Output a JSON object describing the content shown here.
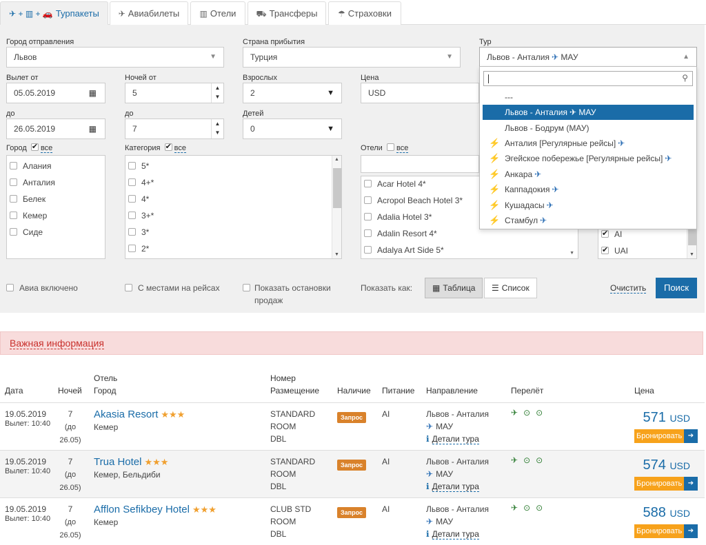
{
  "tabs": [
    {
      "label": "Турпакеты",
      "icon": "plane-hotel-car-icon"
    },
    {
      "label": "Авиабилеты",
      "icon": "plane-icon"
    },
    {
      "label": "Отели",
      "icon": "building-icon"
    },
    {
      "label": "Трансферы",
      "icon": "car-icon"
    },
    {
      "label": "Страховки",
      "icon": "umbrella-icon"
    }
  ],
  "filters": {
    "departure_city": {
      "label": "Город отправления",
      "value": "Львов"
    },
    "arrival_country": {
      "label": "Страна прибытия",
      "value": "Турция"
    },
    "tour": {
      "label": "Тур",
      "value": "Львов - Анталия",
      "suffix": "МАУ"
    },
    "date_from": {
      "label": "Вылет от",
      "value": "05.05.2019"
    },
    "date_to": {
      "label": "до",
      "value": "26.05.2019"
    },
    "nights_from": {
      "label": "Ночей от",
      "value": "5"
    },
    "nights_to": {
      "label": "до",
      "value": "7"
    },
    "adults": {
      "label": "Взрослых",
      "value": "2"
    },
    "children": {
      "label": "Детей",
      "value": "0"
    },
    "price": {
      "label": "Цена",
      "value": "USD"
    },
    "city": {
      "label": "Город",
      "all": "все",
      "items": [
        "Алания",
        "Анталия",
        "Белек",
        "Кемер",
        "Сиде"
      ]
    },
    "category": {
      "label": "Категория",
      "all": "все",
      "items": [
        "5*",
        "4+*",
        "4*",
        "3+*",
        "3*",
        "2*"
      ]
    },
    "hotels": {
      "label": "Отели",
      "all": "все",
      "items": [
        "Acar Hotel 4*",
        "Acropol Beach Hotel 3*",
        "Adalia Hotel 3*",
        "Adalin Resort 4*",
        "Adalya Art Side 5*"
      ]
    },
    "meals": {
      "items": [
        "AI",
        "UAI"
      ]
    }
  },
  "tour_dropdown": {
    "items": [
      {
        "label": "---",
        "bolt": false,
        "plane": false
      },
      {
        "label": "Львов - Анталия",
        "suffix": "МАУ",
        "bolt": false,
        "plane": true,
        "selected": true
      },
      {
        "label": "Львов - Бодрум (МАУ)",
        "bolt": false,
        "plane": false
      },
      {
        "label": "Анталия [Регулярные рейсы]",
        "bolt": true,
        "plane": true
      },
      {
        "label": "Эгейское побережье [Регулярные рейсы]",
        "bolt": true,
        "plane": true
      },
      {
        "label": "Анкара",
        "bolt": true,
        "plane": true
      },
      {
        "label": "Каппадокия",
        "bolt": true,
        "plane": true
      },
      {
        "label": "Кушадасы",
        "bolt": true,
        "plane": true
      },
      {
        "label": "Стамбул",
        "bolt": true,
        "plane": true
      }
    ]
  },
  "options": {
    "avia_included": "Авиа включено",
    "with_seats": "С местами на рейсах",
    "show_stops": "Показать остановки продаж",
    "show_as": "Показать как:",
    "table": "Таблица",
    "list": "Список",
    "clear": "Очистить",
    "search": "Поиск"
  },
  "info_bar": "Важная информация",
  "table": {
    "headers": {
      "date": "Дата",
      "nights": "Ночей",
      "hotel_top": "Отель",
      "hotel_bottom": "Город",
      "room_top": "Номер",
      "room_bottom": "Размещение",
      "availability": "Наличие",
      "meal": "Питание",
      "direction": "Направление",
      "flight": "Перелёт",
      "price": "Цена"
    },
    "rows": [
      {
        "date": "19.05.2019",
        "departure": "Вылет: 10:40",
        "nights": "7",
        "until": "(до",
        "until_date": "26.05)",
        "hotel": "Akasia Resort",
        "stars": "★★★",
        "city": "Кемер",
        "room": [
          "STANDARD",
          "ROOM",
          "DBL"
        ],
        "availability": "Запрос",
        "meal": "AI",
        "direction": "Львов - Анталия",
        "airline": "МАУ",
        "details": "Детали тура",
        "price": "571",
        "currency": "USD",
        "book": "Бронировать"
      },
      {
        "date": "19.05.2019",
        "departure": "Вылет: 10:40",
        "nights": "7",
        "until": "(до",
        "until_date": "26.05)",
        "hotel": "Trua Hotel",
        "stars": "★★★",
        "city": "Кемер, Бельдиби",
        "room": [
          "STANDARD",
          "ROOM",
          "DBL"
        ],
        "availability": "Запрос",
        "meal": "AI",
        "direction": "Львов - Анталия",
        "airline": "МАУ",
        "details": "Детали тура",
        "price": "574",
        "currency": "USD",
        "book": "Бронировать"
      },
      {
        "date": "19.05.2019",
        "departure": "Вылет: 10:40",
        "nights": "7",
        "until": "(до",
        "until_date": "26.05)",
        "hotel": "Afflon Sefikbey Hotel",
        "stars": "★★★",
        "city": "Кемер",
        "room": [
          "CLUB STD",
          "ROOM",
          "DBL"
        ],
        "availability": "Запрос",
        "meal": "AI",
        "direction": "Львов - Анталия",
        "airline": "МАУ",
        "details": "Детали тура",
        "price": "588",
        "currency": "USD",
        "book": "Бронировать"
      }
    ]
  }
}
